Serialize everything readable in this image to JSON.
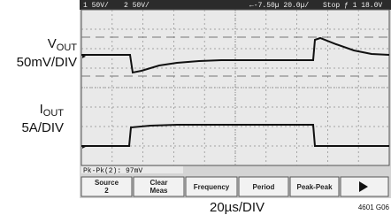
{
  "scope": {
    "status_bar": {
      "channel_1": "1  50V/",
      "channel_2": "2  50V/",
      "timebase": "←-7.50µ  20.0µ/",
      "trigger": "Stop  ƒ 1  18.0V"
    },
    "measurement": "Pk-Pk(2):  97mV",
    "buttons": [
      {
        "line1": "Source",
        "line2": "2"
      },
      {
        "line1": "Clear",
        "line2": "Meas"
      },
      {
        "line1": "Frequency"
      },
      {
        "line1": "Period"
      },
      {
        "line1": "Peak-Peak"
      }
    ]
  },
  "labels": {
    "vout": {
      "main": "V",
      "sub": "OUT",
      "scale": "50mV/DIV"
    },
    "iout": {
      "main": "I",
      "sub": "OUT",
      "scale": "5A/DIV"
    },
    "time_scale": "20µs/DIV",
    "figure_id": "4601 G06"
  }
}
